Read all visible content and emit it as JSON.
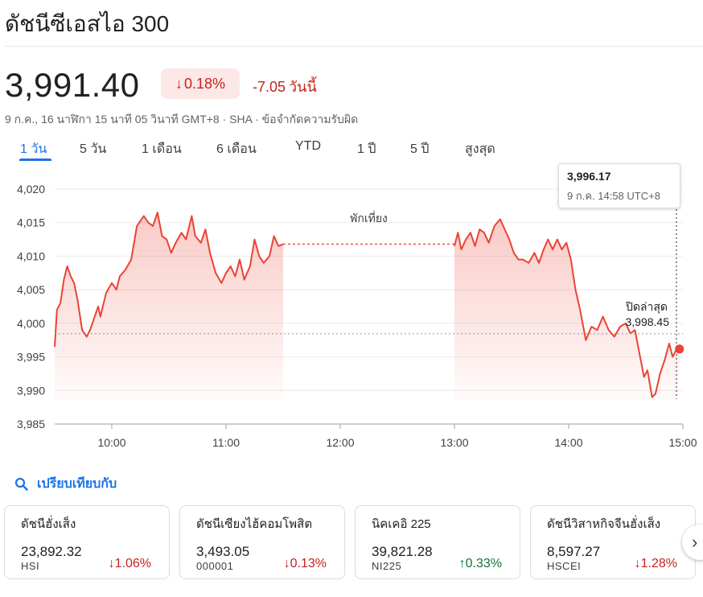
{
  "header": {
    "title": "ดัชนีซีเอสไอ 300"
  },
  "quote": {
    "price": "3,991.40",
    "percent_change": "0.18%",
    "abs_change": "-7.05",
    "period_label": "วันนี้",
    "meta": "9 ก.ค., 16 นาฬิกา 15 นาที 05 วินาที GMT+8 · SHA · ข้อจำกัดความรับผิด",
    "trend_color": "#c5221f"
  },
  "tabs": [
    "1 วัน",
    "5 วัน",
    "1 เดือน",
    "6 เดือน",
    "YTD",
    "1 ปี",
    "5 ปี",
    "สูงสุด"
  ],
  "active_tab": "1 วัน",
  "tooltip": {
    "value": "3,996.17",
    "time": "9 ก.ค. 14:58 UTC+8"
  },
  "chart_data": {
    "type": "area",
    "line_color": "#ea4335",
    "ylim": [
      3985,
      4020
    ],
    "y_ticks": [
      "4,020",
      "4,015",
      "4,010",
      "4,005",
      "4,000",
      "3,995",
      "3,990",
      "3,985"
    ],
    "x_ticks": [
      "10:00",
      "11:00",
      "12:00",
      "13:00",
      "14:00",
      "15:00"
    ],
    "x_range_hours": [
      9.5,
      15.0
    ],
    "break_label": "พักเที่ยง",
    "previous_close_label": "ปิดล่าสุด",
    "previous_close_value_label": "3,998.45",
    "previous_close": 3998.45,
    "morning": {
      "x": [
        9.5,
        9.52,
        9.55,
        9.58,
        9.61,
        9.64,
        9.67,
        9.7,
        9.74,
        9.78,
        9.81,
        9.84,
        9.88,
        9.9,
        9.95,
        10.0,
        10.04,
        10.07,
        10.12,
        10.17,
        10.22,
        10.28,
        10.32,
        10.36,
        10.4,
        10.44,
        10.48,
        10.52,
        10.56,
        10.61,
        10.65,
        10.7,
        10.73,
        10.78,
        10.82,
        10.86,
        10.91,
        10.96,
        11.0,
        11.04,
        11.08,
        11.12,
        11.16,
        11.21,
        11.25,
        11.29,
        11.33,
        11.38,
        11.42,
        11.46,
        11.5
      ],
      "y": [
        3996.5,
        4002.0,
        4003.0,
        4006.5,
        4008.5,
        4007.0,
        4006.0,
        4003.5,
        3999.0,
        3998.0,
        3999.0,
        4000.5,
        4002.5,
        4001.0,
        4004.5,
        4006.0,
        4005.0,
        4007.0,
        4008.0,
        4009.5,
        4014.5,
        4016.0,
        4015.0,
        4014.5,
        4016.5,
        4013.0,
        4012.5,
        4010.5,
        4012.0,
        4013.5,
        4012.5,
        4016.0,
        4013.0,
        4012.0,
        4014.0,
        4010.5,
        4007.5,
        4006.0,
        4007.5,
        4008.5,
        4007.0,
        4009.5,
        4006.5,
        4008.5,
        4012.5,
        4010.0,
        4009.0,
        4010.0,
        4013.0,
        4011.5,
        4011.8
      ]
    },
    "afternoon": {
      "x": [
        13.0,
        13.03,
        13.06,
        13.1,
        13.14,
        13.18,
        13.22,
        13.26,
        13.3,
        13.35,
        13.4,
        13.44,
        13.48,
        13.52,
        13.56,
        13.6,
        13.65,
        13.7,
        13.74,
        13.78,
        13.82,
        13.86,
        13.9,
        13.94,
        13.98,
        14.02,
        14.06,
        14.1,
        14.15,
        14.2,
        14.25,
        14.3,
        14.35,
        14.4,
        14.45,
        14.5,
        14.54,
        14.58,
        14.62,
        14.66,
        14.69,
        14.73,
        14.76,
        14.8,
        14.84,
        14.88,
        14.91,
        14.94,
        14.97
      ],
      "y": [
        4011.5,
        4013.5,
        4011.0,
        4012.5,
        4013.5,
        4011.5,
        4014.0,
        4013.5,
        4012.0,
        4014.5,
        4015.5,
        4014.0,
        4012.5,
        4010.5,
        4009.5,
        4009.5,
        4009.0,
        4010.5,
        4009.0,
        4011.0,
        4012.5,
        4011.0,
        4012.5,
        4011.0,
        4012.0,
        4009.5,
        4005.0,
        4002.0,
        3997.5,
        3999.5,
        3999.0,
        4001.0,
        3999.0,
        3998.0,
        3999.5,
        4000.0,
        3998.5,
        3999.0,
        3995.5,
        3992.0,
        3993.0,
        3989.0,
        3989.5,
        3992.5,
        3994.5,
        3997.0,
        3995.0,
        3996.0,
        3996.17
      ]
    }
  },
  "compare": {
    "label": "เปรียบเทียบกับ"
  },
  "related": [
    {
      "name": "ดัชนีฮั่งเส็ง",
      "value": "23,892.32",
      "symbol": "HSI",
      "change": "1.06%",
      "direction": "down"
    },
    {
      "name": "ดัชนีเซียงไฮ้คอมโพสิต",
      "value": "3,493.05",
      "symbol": "000001",
      "change": "0.13%",
      "direction": "down"
    },
    {
      "name": "นิคเคอิ 225",
      "value": "39,821.28",
      "symbol": "NI225",
      "change": "0.33%",
      "direction": "up"
    },
    {
      "name": "ดัชนีวิสาหกิจจีนฮั่งเส็ง",
      "value": "8,597.27",
      "symbol": "HSCEI",
      "change": "1.28%",
      "direction": "down"
    }
  ]
}
